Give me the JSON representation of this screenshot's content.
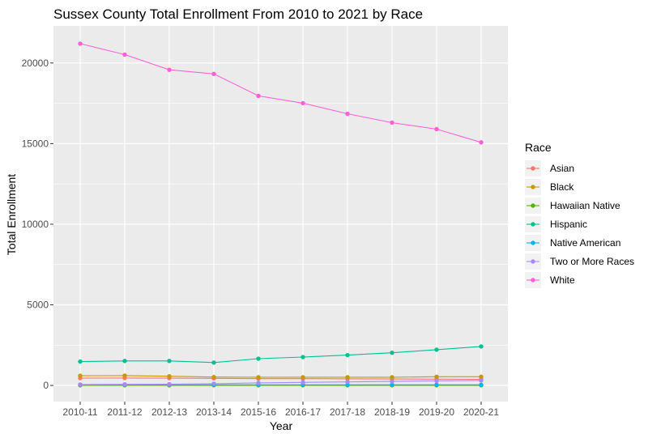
{
  "chart_data": {
    "type": "line",
    "title": "Sussex County Total Enrollment From 2010 to 2021 by Race",
    "xlabel": "Year",
    "ylabel": "Total Enrollment",
    "categories": [
      "2010-11",
      "2011-12",
      "2012-13",
      "2013-14",
      "2015-16",
      "2016-17",
      "2017-18",
      "2018-19",
      "2019-20",
      "2020-21"
    ],
    "ylim": [
      -1000,
      22300
    ],
    "yticks": [
      0,
      5000,
      10000,
      15000,
      20000
    ],
    "ytick_labels": [
      "0",
      "5000",
      "10000",
      "15000",
      "20000"
    ],
    "grid": true,
    "legend": {
      "title": "Race",
      "placement": "right"
    },
    "series": [
      {
        "name": "Asian",
        "color": "#F8766D",
        "values": [
          450,
          460,
          450,
          440,
          420,
          420,
          410,
          400,
          390,
          380
        ]
      },
      {
        "name": "Black",
        "color": "#C49A00",
        "values": [
          600,
          610,
          570,
          520,
          510,
          510,
          510,
          510,
          540,
          540
        ]
      },
      {
        "name": "Hawaiian Native",
        "color": "#53B400",
        "values": [
          10,
          10,
          10,
          10,
          10,
          10,
          10,
          10,
          10,
          10
        ]
      },
      {
        "name": "Hispanic",
        "color": "#00C094",
        "values": [
          1480,
          1520,
          1520,
          1420,
          1660,
          1760,
          1880,
          2030,
          2220,
          2420
        ]
      },
      {
        "name": "Native American",
        "color": "#00B6EB",
        "values": [
          40,
          40,
          40,
          40,
          40,
          40,
          40,
          40,
          40,
          40
        ]
      },
      {
        "name": "Two or More Races",
        "color": "#A58AFF",
        "values": [
          60,
          70,
          80,
          110,
          160,
          190,
          220,
          250,
          280,
          310
        ]
      },
      {
        "name": "White",
        "color": "#FB61D7",
        "values": [
          21200,
          20520,
          19580,
          19320,
          17960,
          17510,
          16850,
          16300,
          15900,
          15080
        ]
      }
    ]
  }
}
